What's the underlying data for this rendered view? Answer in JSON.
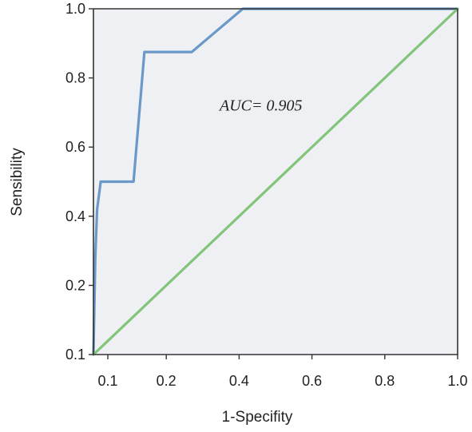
{
  "chart_data": {
    "type": "line",
    "title": "",
    "xlabel": "1-Specifity",
    "ylabel": "Sensibility",
    "x_ticks": [
      {
        "value": 0.1,
        "label": "0.1"
      },
      {
        "value": 0.2,
        "label": "0.2"
      },
      {
        "value": 0.4,
        "label": "0.4"
      },
      {
        "value": 0.6,
        "label": "0.6"
      },
      {
        "value": 0.8,
        "label": "0.8"
      },
      {
        "value": 1.0,
        "label": "1.0"
      }
    ],
    "y_ticks": [
      {
        "value": 0.1,
        "label": "0.1"
      },
      {
        "value": 0.2,
        "label": "0.2"
      },
      {
        "value": 0.4,
        "label": "0.4"
      },
      {
        "value": 0.6,
        "label": "0.6"
      },
      {
        "value": 0.8,
        "label": "0.8"
      },
      {
        "value": 1.0,
        "label": "1.0"
      }
    ],
    "series": [
      {
        "color": "#6a98c8",
        "points": [
          [
            0.0,
            0.0
          ],
          [
            0.005,
            0.28
          ],
          [
            0.01,
            0.42
          ],
          [
            0.02,
            0.5
          ],
          [
            0.11,
            0.5
          ],
          [
            0.14,
            0.875
          ],
          [
            0.27,
            0.875
          ],
          [
            0.41,
            1.0
          ],
          [
            1.0,
            1.0
          ]
        ]
      },
      {
        "color": "#82c57a",
        "points": [
          [
            0.0,
            0.0
          ],
          [
            1.0,
            1.0
          ]
        ]
      }
    ],
    "annotations": [
      {
        "text": "AUC= 0.905",
        "x": 0.46,
        "y": 0.705
      }
    ],
    "plot_background": "#eef0f3",
    "grid": false,
    "legend": "none"
  }
}
